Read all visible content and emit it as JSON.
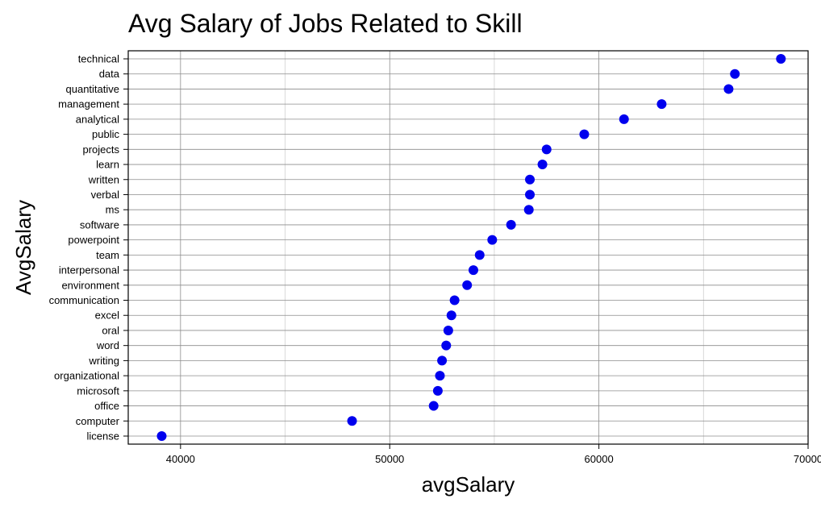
{
  "chart_data": {
    "type": "scatter",
    "title": "Avg Salary of Jobs Related to Skill",
    "xlabel": "avgSalary",
    "ylabel": "AvgSalary",
    "xlim": [
      37500,
      70000
    ],
    "x_ticks": [
      40000,
      50000,
      60000,
      70000
    ],
    "grid": true,
    "point_color": "#0000ee",
    "categories": [
      "technical",
      "data",
      "quantitative",
      "management",
      "analytical",
      "public",
      "projects",
      "learn",
      "written",
      "verbal",
      "ms",
      "software",
      "powerpoint",
      "team",
      "interpersonal",
      "environment",
      "communication",
      "excel",
      "oral",
      "word",
      "writing",
      "organizational",
      "microsoft",
      "office",
      "computer",
      "license"
    ],
    "values": [
      68700,
      66500,
      66200,
      63000,
      61200,
      59300,
      57500,
      57300,
      56700,
      56700,
      56650,
      55800,
      54900,
      54300,
      54000,
      53700,
      53100,
      52950,
      52800,
      52700,
      52500,
      52400,
      52300,
      52100,
      48200,
      39100
    ]
  }
}
